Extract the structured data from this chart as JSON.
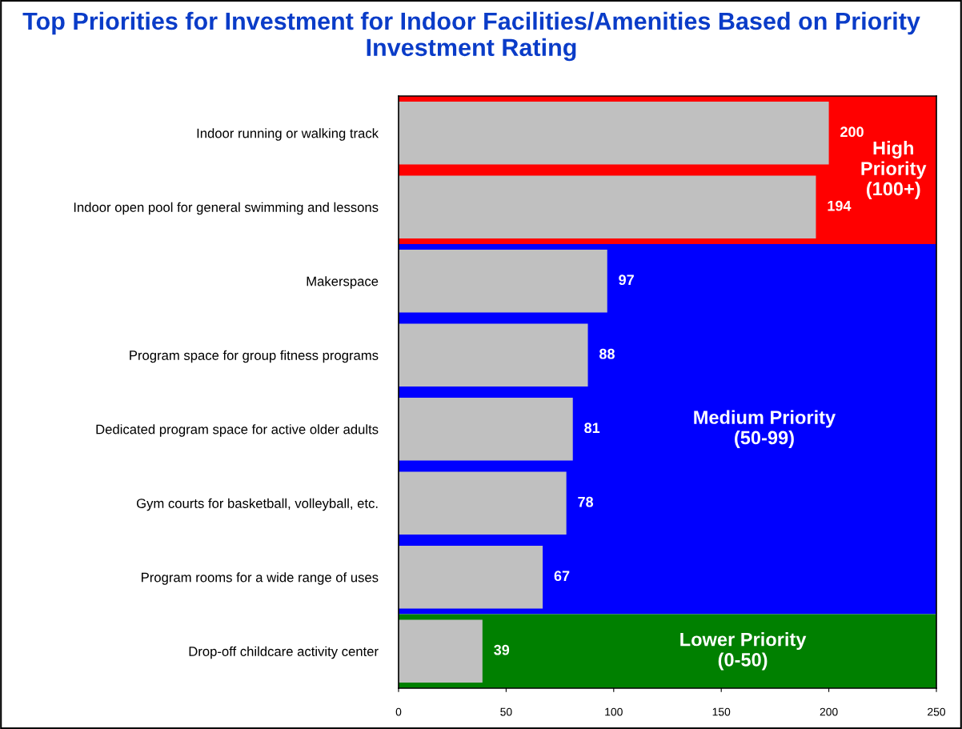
{
  "chart_data": {
    "type": "bar",
    "orientation": "horizontal",
    "title": "Top Priorities for Investment for Indoor Facilities/Amenities Based on Priority Investment Rating",
    "categories": [
      "Indoor running or walking track",
      "Indoor open pool for general swimming and lessons",
      "Makerspace",
      "Program space for group fitness programs",
      "Dedicated program space for active older adults",
      "Gym courts for basketball, volleyball, etc.",
      "Program rooms for a wide range of uses",
      "Drop-off childcare activity center"
    ],
    "values": [
      200,
      194,
      97,
      88,
      81,
      78,
      67,
      39
    ],
    "color": "#c0c0c0",
    "data_labels": true,
    "xlim": [
      0,
      250
    ],
    "xticks": [
      0,
      50,
      100,
      150,
      200,
      250
    ],
    "grid": false,
    "legend": false,
    "bands": [
      {
        "axis": "y",
        "from": "Indoor running or walking track",
        "to": "Indoor open pool for general swimming and lessons",
        "label": "High\nPriority\n(100+)",
        "color": "#ff0000"
      },
      {
        "axis": "y",
        "from": "Makerspace",
        "to": "Program rooms for a wide range of uses",
        "label": "Medium Priority\n(50-99)",
        "color": "#0000ff"
      },
      {
        "axis": "y",
        "from": "Drop-off childcare activity center",
        "to": "Drop-off childcare activity center",
        "label": "Lower Priority\n(0-50)",
        "color": "#008000"
      }
    ]
  }
}
